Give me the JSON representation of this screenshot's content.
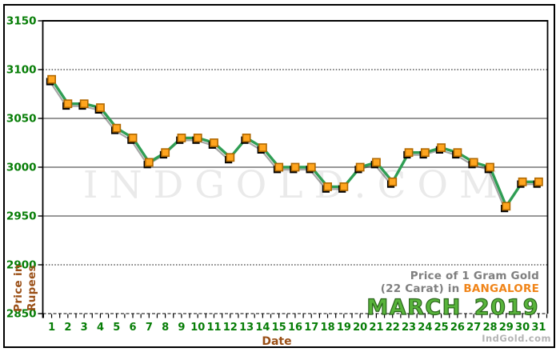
{
  "chart_data": {
    "type": "line",
    "title": "Price of 1 Gram Gold (22 Carat) in BANGALORE - MARCH 2019",
    "xlabel": "Date",
    "ylabel": "Price in Rupees",
    "x": [
      1,
      2,
      3,
      4,
      5,
      6,
      7,
      8,
      9,
      10,
      11,
      12,
      13,
      14,
      15,
      16,
      17,
      18,
      19,
      20,
      21,
      22,
      23,
      24,
      25,
      26,
      27,
      28,
      29,
      30,
      31
    ],
    "series": [
      {
        "name": "Gold price per 1 gram (22 carat) in Rupees",
        "values": [
          3090,
          3065,
          3065,
          3061,
          3040,
          3030,
          3005,
          3015,
          3030,
          3030,
          3025,
          3010,
          3030,
          3020,
          3000,
          3000,
          3000,
          2980,
          2980,
          3000,
          3005,
          2985,
          3015,
          3015,
          3020,
          3015,
          3005,
          3000,
          2960,
          2985,
          2985
        ]
      }
    ],
    "ylim": [
      2850,
      3150
    ],
    "yticks": [
      {
        "value": 2850,
        "style": "dashed"
      },
      {
        "value": 2900,
        "style": "dotted"
      },
      {
        "value": 2950,
        "style": "solid"
      },
      {
        "value": 3000,
        "style": "solid"
      },
      {
        "value": 3050,
        "style": "solid"
      },
      {
        "value": 3100,
        "style": "dotted"
      },
      {
        "value": 3150,
        "style": "axis"
      }
    ],
    "grid": "horizontal",
    "legend": "none",
    "colors": {
      "line": "#2f9e54",
      "marker_fill": "#ffa51e",
      "marker_border": "#b06800",
      "marker_shadow": "#000000",
      "axis_tick_label": "#067d06",
      "grid_solid": "#8a8a8a",
      "grid_dotted": "#000000",
      "axis_line": "#000000",
      "brown_label": "#9a4f16"
    }
  },
  "axis": {
    "x_label": "Date",
    "y_label_line1": "Price in",
    "y_label_line2": "Rupees"
  },
  "caption": {
    "line1": "Price of 1 Gram Gold",
    "line2_prefix": "(22 Carat) in",
    "city": "BANGALORE",
    "month": "MARCH",
    "year": "2019"
  },
  "watermark": {
    "center_text": "IndGold.com",
    "credit_text": "IndGold.com"
  }
}
